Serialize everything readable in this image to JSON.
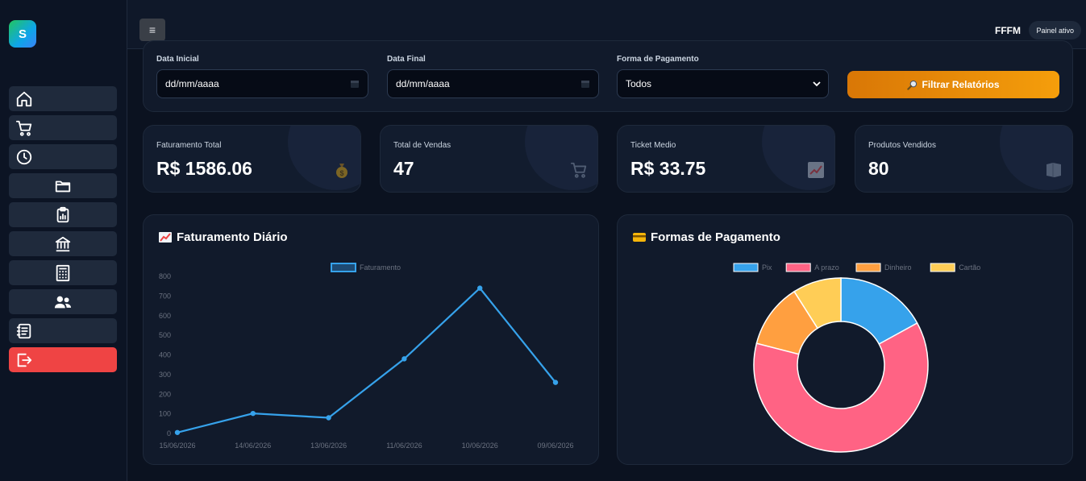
{
  "app": {
    "logo_letter": "S"
  },
  "topbar": {
    "menu_icon": "≡",
    "user": "FFFM",
    "status_badge": "Painel ativo"
  },
  "sidebar": {
    "items": [
      {
        "icon": "home-icon"
      },
      {
        "icon": "cart-icon"
      },
      {
        "icon": "clock-icon"
      },
      {
        "icon": "folder-icon"
      },
      {
        "icon": "clipboard-chart-icon"
      },
      {
        "icon": "bank-icon"
      },
      {
        "icon": "calculator-icon"
      },
      {
        "icon": "users-icon"
      },
      {
        "icon": "notebook-icon"
      },
      {
        "icon": "logout-icon"
      }
    ]
  },
  "filters": {
    "start_date": {
      "label": "Data Inicial",
      "value": "dd/mm/aaaa"
    },
    "end_date": {
      "label": "Data Final",
      "value": "dd/mm/aaaa"
    },
    "payment": {
      "label": "Forma de Pagamento",
      "value": "Todos"
    },
    "submit_label": "Filtrar Relatórios"
  },
  "stats": [
    {
      "label": "Faturamento Total",
      "value": "R$ 1586.06",
      "icon": "money-bag-icon"
    },
    {
      "label": "Total de Vendas",
      "value": "47",
      "icon": "cart-icon"
    },
    {
      "label": "Ticket Medio",
      "value": "R$ 33.75",
      "icon": "chart-check-icon"
    },
    {
      "label": "Produtos Vendidos",
      "value": "80",
      "icon": "box-icon"
    }
  ],
  "charts": {
    "line_title": "Faturamento Diário",
    "pie_title": "Formas de Pagamento"
  },
  "chart_data": [
    {
      "type": "line",
      "title": "Faturamento Diário",
      "categories": [
        "15/06/2026",
        "14/06/2026",
        "13/06/2026",
        "11/06/2026",
        "10/06/2026",
        "09/06/2026"
      ],
      "series": [
        {
          "name": "Faturamento",
          "values": [
            5,
            102,
            80,
            380,
            740,
            260
          ],
          "color": "#36a2eb"
        }
      ],
      "y_ticks": [
        0,
        100,
        200,
        300,
        400,
        500,
        600,
        700,
        800
      ],
      "ylim": [
        0,
        800
      ],
      "grid": false,
      "legend": "top-center"
    },
    {
      "type": "pie",
      "title": "Formas de Pagamento",
      "donut": true,
      "labels": [
        "Pix",
        "A prazo",
        "Dinheiro",
        "Cartão"
      ],
      "values": [
        17,
        62,
        12,
        9
      ],
      "colors": [
        "#36a2eb",
        "#ff6384",
        "#ff9f40",
        "#ffcd56"
      ],
      "legend": "top-center"
    }
  ]
}
